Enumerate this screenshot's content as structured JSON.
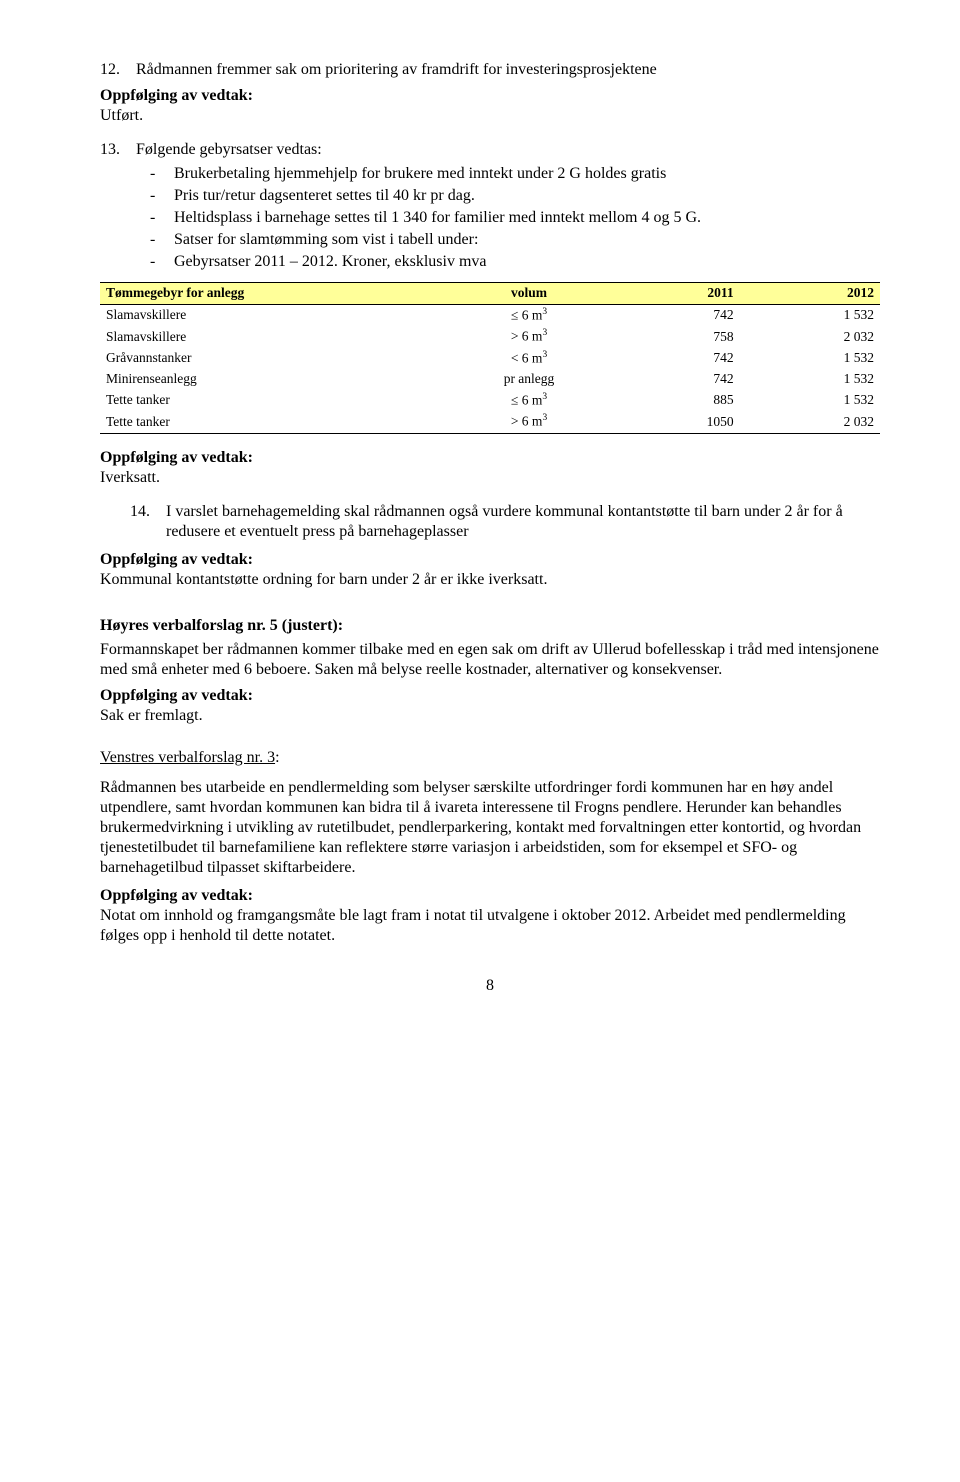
{
  "item12": {
    "num": "12.",
    "text": "Rådmannen fremmer sak om prioritering av framdrift for investeringsprosjektene"
  },
  "oppf_label": "Oppfølging av vedtak:",
  "item12_status": "Utført.",
  "item13": {
    "num": "13.",
    "text": "Følgende gebyrsatser vedtas:"
  },
  "item13_bullets": [
    "Brukerbetaling hjemmehjelp for brukere med inntekt under 2 G holdes gratis",
    "Pris tur/retur dagsenteret settes til 40 kr pr dag.",
    "Heltidsplass i barnehage settes til 1 340 for familier med inntekt mellom 4 og 5 G.",
    "Satser for slamtømming som vist i tabell under:",
    "Gebyrsatser 2011 – 2012. Kroner, eksklusiv mva"
  ],
  "table": {
    "header": {
      "col1": "Tømmegebyr for anlegg",
      "col2": "volum",
      "col3": "2011",
      "col4": "2012"
    },
    "rows": [
      {
        "c1": "Slamavskillere",
        "c2": "≤ 6 m",
        "sup": "3",
        "c3": "742",
        "c4": "1 532"
      },
      {
        "c1": "Slamavskillere",
        "c2": "> 6 m",
        "sup": "3",
        "c3": "758",
        "c4": "2 032"
      },
      {
        "c1": "Gråvannstanker",
        "c2": "< 6 m",
        "sup": "3",
        "c3": "742",
        "c4": "1 532"
      },
      {
        "c1": "Minirenseanlegg",
        "c2": "pr anlegg",
        "sup": "",
        "c3": "742",
        "c4": "1 532"
      },
      {
        "c1": "Tette tanker",
        "c2": "≤ 6 m",
        "sup": "3",
        "c3": "885",
        "c4": "1 532"
      },
      {
        "c1": "Tette tanker",
        "c2": "> 6 m",
        "sup": "3",
        "c3": "1050",
        "c4": "2 032"
      }
    ],
    "header_bg": "#ffff99",
    "border_color": "#000000"
  },
  "item13_status": "Iverksatt.",
  "item14": {
    "num": "14.",
    "text": "I varslet barnehagemelding skal rådmannen også vurdere kommunal kontantstøtte til barn under 2 år for å redusere et eventuelt press på barnehageplasser"
  },
  "item14_status": "Kommunal kontantstøtte ordning for barn under 2 år er ikke iverksatt.",
  "hoyre5": {
    "heading": "Høyres verbalforslag nr. 5 (justert):",
    "text": "Formannskapet ber rådmannen kommer tilbake med en egen sak om drift av Ullerud bofellesskap i tråd med intensjonene med små enheter med 6 beboere. Saken må belyse reelle kostnader, alternativer og konsekvenser.",
    "status": "Sak er fremlagt."
  },
  "venstre3": {
    "heading": "Venstres verbalforslag nr. 3",
    "colon": ":",
    "text": "Rådmannen bes utarbeide en pendlermelding som belyser særskilte utfordringer fordi kommunen har en høy andel utpendlere, samt hvordan kommunen kan bidra til å ivareta interessene til Frogns pendlere. Herunder kan behandles brukermedvirkning i utvikling av rutetilbudet, pendlerparkering, kontakt med forvaltningen etter kontortid, og hvordan tjenestetilbudet til barnefamiliene kan reflektere større variasjon i arbeidstiden, som for eksempel et SFO- og barnehagetilbud tilpasset skiftarbeidere.",
    "status": "Notat om innhold og framgangsmåte ble lagt fram i notat til utvalgene i oktober 2012. Arbeidet med pendlermelding følges opp i henhold til dette notatet."
  },
  "page_number": "8"
}
